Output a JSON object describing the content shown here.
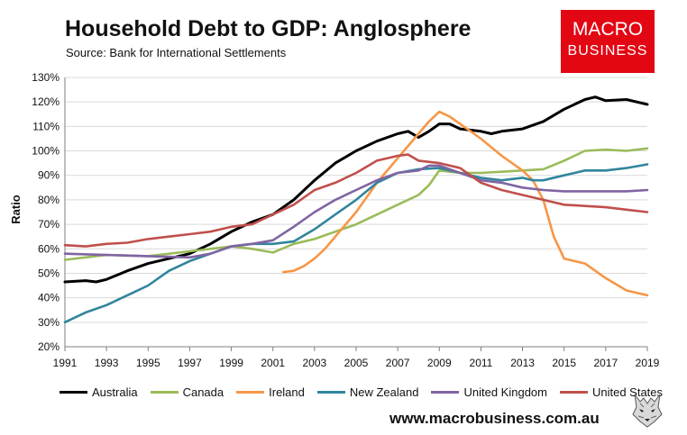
{
  "header": {
    "title": "Household Debt to GDP: Anglosphere",
    "subtitle": "Source: Bank for International Settlements"
  },
  "logo": {
    "line1": "MACRO",
    "line2": "BUSINESS"
  },
  "footer": {
    "website": "www.macrobusiness.com.au"
  },
  "colors": {
    "Australia": "#000000",
    "Canada": "#9bbb59",
    "Ireland": "#f79646",
    "New Zealand": "#31859c",
    "United Kingdom": "#8064a2",
    "United States": "#c0504d"
  },
  "chart_data": {
    "type": "line",
    "title": "Household Debt to GDP: Anglosphere",
    "xlabel": "",
    "ylabel": "Ratio",
    "xlim": [
      1991,
      2019
    ],
    "ylim": [
      20,
      130
    ],
    "x_ticks": [
      "1991",
      "1993",
      "1995",
      "1997",
      "1999",
      "2001",
      "2003",
      "2005",
      "2007",
      "2009",
      "2011",
      "2013",
      "2015",
      "2017",
      "2019"
    ],
    "y_ticks": [
      "20%",
      "30%",
      "40%",
      "50%",
      "60%",
      "70%",
      "80%",
      "90%",
      "100%",
      "110%",
      "120%",
      "130%"
    ],
    "legend_position": "bottom",
    "series": [
      {
        "name": "Australia",
        "points": [
          [
            1991,
            46.5
          ],
          [
            1992,
            47
          ],
          [
            1992.5,
            46.5
          ],
          [
            1993,
            47.5
          ],
          [
            1994,
            51
          ],
          [
            1995,
            54
          ],
          [
            1996,
            56
          ],
          [
            1997,
            58
          ],
          [
            1998,
            62
          ],
          [
            1999,
            67
          ],
          [
            2000,
            71
          ],
          [
            2001,
            74
          ],
          [
            2002,
            80
          ],
          [
            2003,
            88
          ],
          [
            2004,
            95
          ],
          [
            2005,
            100
          ],
          [
            2006,
            104
          ],
          [
            2007,
            107
          ],
          [
            2007.5,
            108
          ],
          [
            2008,
            105.5
          ],
          [
            2008.5,
            108
          ],
          [
            2009,
            111
          ],
          [
            2009.5,
            111
          ],
          [
            2010,
            109
          ],
          [
            2011,
            108
          ],
          [
            2011.5,
            107
          ],
          [
            2012,
            108
          ],
          [
            2013,
            109
          ],
          [
            2014,
            112
          ],
          [
            2015,
            117
          ],
          [
            2016,
            121
          ],
          [
            2016.5,
            122
          ],
          [
            2017,
            120.5
          ],
          [
            2018,
            121
          ],
          [
            2019,
            119
          ]
        ]
      },
      {
        "name": "Canada",
        "points": [
          [
            1991,
            55.5
          ],
          [
            1993,
            57.5
          ],
          [
            1995,
            57
          ],
          [
            1997,
            59
          ],
          [
            1999,
            61
          ],
          [
            2000,
            60
          ],
          [
            2001,
            58.5
          ],
          [
            2002,
            62
          ],
          [
            2003,
            64
          ],
          [
            2004,
            67
          ],
          [
            2005,
            70
          ],
          [
            2006,
            74
          ],
          [
            2007,
            78
          ],
          [
            2008,
            82
          ],
          [
            2008.5,
            86
          ],
          [
            2009,
            92
          ],
          [
            2010,
            91
          ],
          [
            2011,
            91
          ],
          [
            2012,
            91.5
          ],
          [
            2013,
            92
          ],
          [
            2014,
            92.5
          ],
          [
            2015,
            96
          ],
          [
            2016,
            100
          ],
          [
            2017,
            100.5
          ],
          [
            2018,
            100
          ],
          [
            2019,
            101
          ]
        ]
      },
      {
        "name": "Ireland",
        "points": [
          [
            2001.5,
            50.5
          ],
          [
            2002,
            51
          ],
          [
            2002.5,
            53
          ],
          [
            2003,
            56
          ],
          [
            2003.5,
            60
          ],
          [
            2004,
            65
          ],
          [
            2005,
            75
          ],
          [
            2006,
            87
          ],
          [
            2007,
            97
          ],
          [
            2008,
            107
          ],
          [
            2008.5,
            112
          ],
          [
            2009,
            116
          ],
          [
            2009.5,
            114
          ],
          [
            2010,
            111
          ],
          [
            2011,
            105
          ],
          [
            2012,
            98
          ],
          [
            2013,
            92
          ],
          [
            2013.5,
            88
          ],
          [
            2014,
            80
          ],
          [
            2014.5,
            65
          ],
          [
            2015,
            56
          ],
          [
            2016,
            54
          ],
          [
            2016.5,
            51
          ],
          [
            2017,
            48
          ],
          [
            2018,
            43
          ],
          [
            2019,
            41
          ]
        ]
      },
      {
        "name": "New Zealand",
        "points": [
          [
            1991,
            30
          ],
          [
            1992,
            34
          ],
          [
            1993,
            37
          ],
          [
            1994,
            41
          ],
          [
            1995,
            45
          ],
          [
            1996,
            51
          ],
          [
            1997,
            55
          ],
          [
            1998,
            58
          ],
          [
            1999,
            61
          ],
          [
            2000,
            62
          ],
          [
            2001,
            62
          ],
          [
            2002,
            63
          ],
          [
            2003,
            68
          ],
          [
            2004,
            74
          ],
          [
            2005,
            80
          ],
          [
            2006,
            87
          ],
          [
            2007,
            91
          ],
          [
            2008,
            92.5
          ],
          [
            2009,
            93
          ],
          [
            2010,
            91
          ],
          [
            2011,
            89
          ],
          [
            2012,
            88
          ],
          [
            2013,
            89
          ],
          [
            2013.5,
            88
          ],
          [
            2014,
            88
          ],
          [
            2015,
            90
          ],
          [
            2016,
            92
          ],
          [
            2017,
            92
          ],
          [
            2018,
            93
          ],
          [
            2019,
            94.5
          ]
        ]
      },
      {
        "name": "United Kingdom",
        "points": [
          [
            1991,
            58
          ],
          [
            1993,
            57.5
          ],
          [
            1995,
            57
          ],
          [
            1997,
            56.5
          ],
          [
            1998,
            58
          ],
          [
            1999,
            61
          ],
          [
            2000,
            62
          ],
          [
            2001,
            63.5
          ],
          [
            2002,
            69
          ],
          [
            2003,
            75
          ],
          [
            2004,
            80
          ],
          [
            2005,
            84
          ],
          [
            2006,
            88
          ],
          [
            2007,
            91
          ],
          [
            2008,
            92
          ],
          [
            2008.5,
            94
          ],
          [
            2009,
            94
          ],
          [
            2010,
            91
          ],
          [
            2011,
            88
          ],
          [
            2012,
            87
          ],
          [
            2013,
            85
          ],
          [
            2014,
            84
          ],
          [
            2015,
            83.5
          ],
          [
            2016,
            83.5
          ],
          [
            2017,
            83.5
          ],
          [
            2018,
            83.5
          ],
          [
            2019,
            84
          ]
        ]
      },
      {
        "name": "United States",
        "points": [
          [
            1991,
            61.5
          ],
          [
            1992,
            61
          ],
          [
            1993,
            62
          ],
          [
            1994,
            62.5
          ],
          [
            1995,
            64
          ],
          [
            1996,
            65
          ],
          [
            1997,
            66
          ],
          [
            1998,
            67
          ],
          [
            1999,
            69
          ],
          [
            2000,
            70
          ],
          [
            2001,
            74
          ],
          [
            2002,
            78
          ],
          [
            2003,
            84
          ],
          [
            2004,
            87
          ],
          [
            2005,
            91
          ],
          [
            2006,
            96
          ],
          [
            2007,
            98
          ],
          [
            2007.5,
            98.5
          ],
          [
            2008,
            96
          ],
          [
            2009,
            95
          ],
          [
            2010,
            93
          ],
          [
            2011,
            87
          ],
          [
            2012,
            84
          ],
          [
            2013,
            82
          ],
          [
            2014,
            80
          ],
          [
            2015,
            78
          ],
          [
            2016,
            77.5
          ],
          [
            2017,
            77
          ],
          [
            2018,
            76
          ],
          [
            2019,
            75
          ]
        ]
      }
    ]
  }
}
